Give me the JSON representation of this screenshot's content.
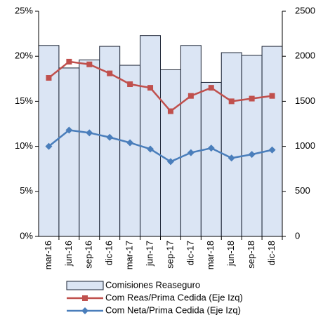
{
  "chart_data": {
    "type": "bar-line",
    "categories": [
      "mar-16",
      "jun-16",
      "sep-16",
      "dic-16",
      "mar-17",
      "jun-17",
      "sep-17",
      "dic-17",
      "mar-18",
      "jun-18",
      "sep-18",
      "dic-18"
    ],
    "series": [
      {
        "name": "Comisiones Reaseguro",
        "type": "bar",
        "axis": "y2",
        "color": "#dbe5f4",
        "values": [
          2120,
          1870,
          1960,
          2110,
          1900,
          2230,
          1850,
          2120,
          1710,
          2040,
          2010,
          2110
        ]
      },
      {
        "name": "Com Reas/Prima Cedida (Eje Izq)",
        "type": "line",
        "marker": "square",
        "color": "#c0504d",
        "values": [
          17.6,
          19.4,
          19.1,
          18.1,
          16.9,
          16.5,
          13.9,
          15.6,
          16.5,
          15.0,
          15.3,
          15.6
        ]
      },
      {
        "name": "Com Neta/Prima Cedida (Eje Izq)",
        "type": "line",
        "marker": "diamond",
        "color": "#4a7ebb",
        "values": [
          10.0,
          11.8,
          11.5,
          11.0,
          10.4,
          9.7,
          8.3,
          9.3,
          9.8,
          8.7,
          9.1,
          9.6
        ]
      }
    ],
    "ylim": [
      0,
      25
    ],
    "yticks": [
      {
        "value": 0,
        "label": "0%"
      },
      {
        "value": 5,
        "label": "5%"
      },
      {
        "value": 10,
        "label": "10%"
      },
      {
        "value": 15,
        "label": "15%"
      },
      {
        "value": 20,
        "label": "20%"
      },
      {
        "value": 25,
        "label": "25%"
      }
    ],
    "y2lim": [
      0,
      2500
    ],
    "y2ticks": [
      0,
      500,
      1000,
      1500,
      2000,
      2500
    ],
    "legend": "bottom"
  }
}
